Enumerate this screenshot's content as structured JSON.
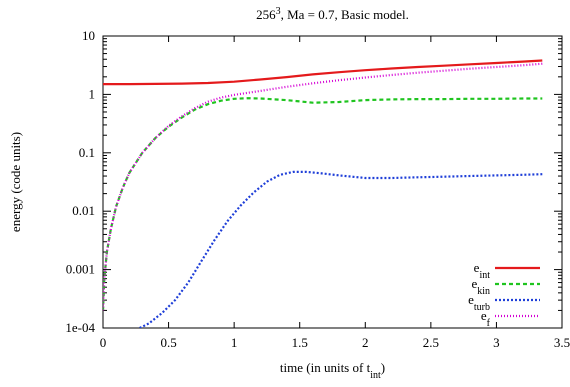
{
  "chart_data": {
    "type": "line",
    "title": {
      "base": "256",
      "sup": "3",
      "rest": ", Ma = 0.7, Basic model."
    },
    "xlabel": {
      "text": "time (in units of t",
      "sub": "int",
      "close": ")"
    },
    "ylabel": "energy (code units)",
    "xlim": [
      0,
      3.5
    ],
    "ylim": [
      0.0001,
      10
    ],
    "yscale": "log",
    "grid": false,
    "legend_position": "bottom-right",
    "xticks": [
      {
        "v": 0,
        "label": "0"
      },
      {
        "v": 0.5,
        "label": "0.5"
      },
      {
        "v": 1,
        "label": "1"
      },
      {
        "v": 1.5,
        "label": "1.5"
      },
      {
        "v": 2,
        "label": "2"
      },
      {
        "v": 2.5,
        "label": "2.5"
      },
      {
        "v": 3,
        "label": "3"
      },
      {
        "v": 3.5,
        "label": "3.5"
      }
    ],
    "yticks": [
      {
        "v": 0.0001,
        "label": "1e-04"
      },
      {
        "v": 0.001,
        "label": "0.001"
      },
      {
        "v": 0.01,
        "label": "0.01"
      },
      {
        "v": 0.1,
        "label": "0.1"
      },
      {
        "v": 1,
        "label": "1"
      },
      {
        "v": 10,
        "label": "10"
      }
    ],
    "series": [
      {
        "name": {
          "base": "e",
          "sub": "int"
        },
        "color": "#e41a1c",
        "dash": "",
        "x": [
          0,
          0.2,
          0.4,
          0.6,
          0.8,
          1.0,
          1.2,
          1.4,
          1.6,
          1.8,
          2.0,
          2.2,
          2.4,
          2.6,
          2.8,
          3.0,
          3.2,
          3.35
        ],
        "y": [
          1.5,
          1.5,
          1.51,
          1.53,
          1.57,
          1.65,
          1.8,
          1.98,
          2.2,
          2.4,
          2.6,
          2.78,
          2.95,
          3.1,
          3.28,
          3.45,
          3.65,
          3.8
        ]
      },
      {
        "name": {
          "base": "e",
          "sub": "kin"
        },
        "color": "#1fc41f",
        "dash": "4,3",
        "x": [
          0,
          0.01,
          0.03,
          0.06,
          0.1,
          0.15,
          0.2,
          0.3,
          0.4,
          0.5,
          0.6,
          0.7,
          0.8,
          0.9,
          1.0,
          1.1,
          1.2,
          1.4,
          1.6,
          1.8,
          2.0,
          2.2,
          2.4,
          2.6,
          2.8,
          3.0,
          3.2,
          3.35
        ],
        "y": [
          0.0002,
          0.0007,
          0.002,
          0.005,
          0.012,
          0.025,
          0.045,
          0.1,
          0.18,
          0.28,
          0.4,
          0.55,
          0.68,
          0.78,
          0.84,
          0.86,
          0.85,
          0.8,
          0.72,
          0.74,
          0.8,
          0.82,
          0.83,
          0.83,
          0.84,
          0.84,
          0.85,
          0.85
        ]
      },
      {
        "name": {
          "base": "e",
          "sub": "turb"
        },
        "color": "#1f3fd8",
        "dash": "2,2",
        "x": [
          0.28,
          0.35,
          0.45,
          0.55,
          0.65,
          0.75,
          0.85,
          0.95,
          1.05,
          1.15,
          1.25,
          1.35,
          1.45,
          1.55,
          1.65,
          1.8,
          2.0,
          2.2,
          2.4,
          2.6,
          2.8,
          3.0,
          3.2,
          3.35
        ],
        "y": [
          0.0001,
          0.00012,
          0.00018,
          0.0003,
          0.0006,
          0.0014,
          0.0032,
          0.0068,
          0.0125,
          0.021,
          0.032,
          0.042,
          0.047,
          0.047,
          0.045,
          0.041,
          0.037,
          0.037,
          0.038,
          0.039,
          0.04,
          0.041,
          0.042,
          0.043
        ]
      },
      {
        "name": {
          "base": "e",
          "sub": "f"
        },
        "color": "#d400d4",
        "dash": "1,2",
        "x": [
          0,
          0.01,
          0.03,
          0.06,
          0.1,
          0.15,
          0.2,
          0.3,
          0.4,
          0.5,
          0.6,
          0.7,
          0.8,
          0.9,
          1.0,
          1.2,
          1.4,
          1.6,
          1.8,
          2.0,
          2.2,
          2.4,
          2.6,
          2.8,
          3.0,
          3.2,
          3.35
        ],
        "y": [
          0.0002,
          0.0007,
          0.002,
          0.005,
          0.012,
          0.025,
          0.045,
          0.1,
          0.18,
          0.29,
          0.42,
          0.58,
          0.75,
          0.88,
          0.98,
          1.15,
          1.35,
          1.55,
          1.75,
          1.95,
          2.15,
          2.35,
          2.55,
          2.75,
          2.95,
          3.15,
          3.35
        ]
      }
    ]
  }
}
